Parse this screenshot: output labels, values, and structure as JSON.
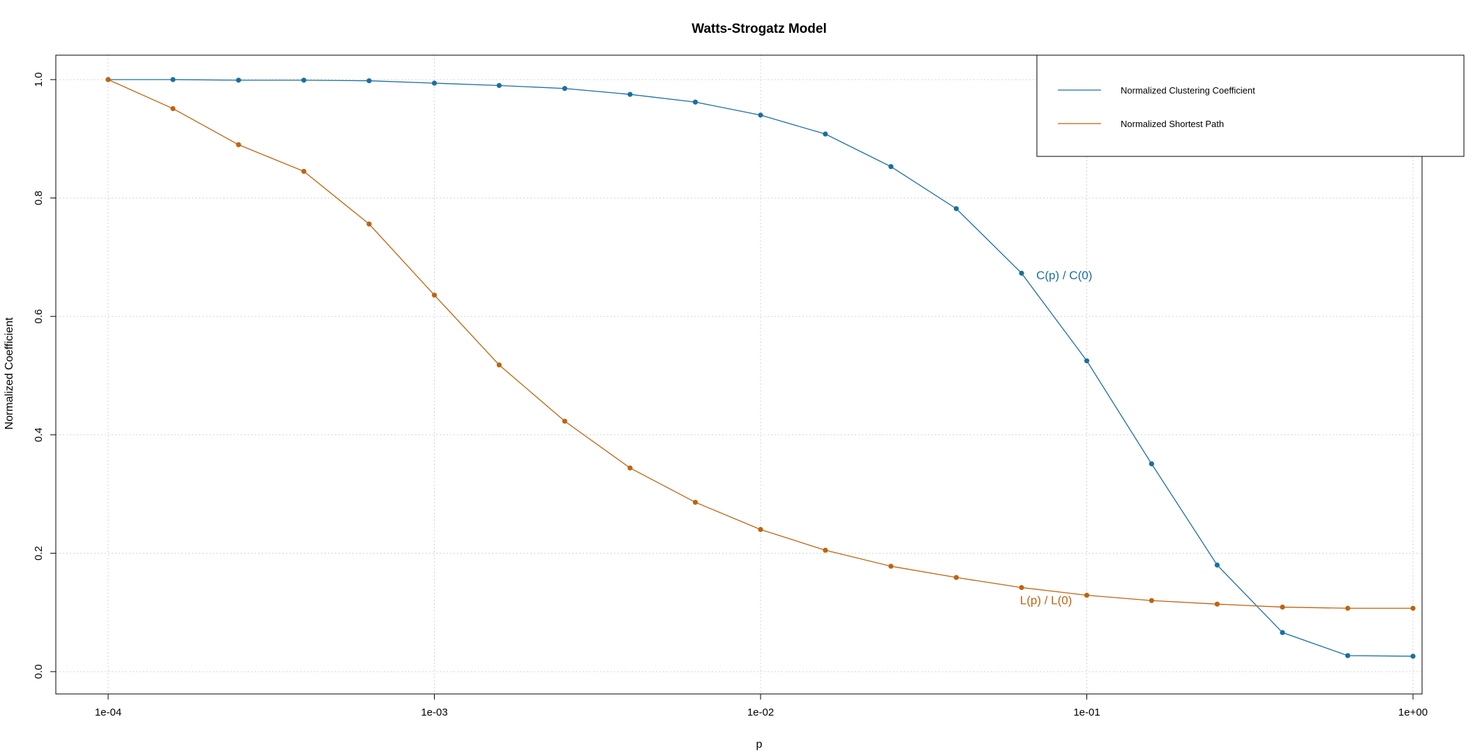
{
  "chart_data": {
    "type": "line",
    "title": "Watts-Strogatz Model",
    "xlabel": "p",
    "ylabel": "Normalized Coefficient",
    "x_scale": "log",
    "xlim": [
      0.0001,
      1
    ],
    "ylim": [
      0,
      1
    ],
    "x_ticks": [
      0.0001,
      0.001,
      0.01,
      0.1,
      1
    ],
    "x_tick_labels": [
      "1e-04",
      "1e-03",
      "1e-02",
      "1e-01",
      "1e+00"
    ],
    "y_ticks": [
      0,
      0.2,
      0.4,
      0.6,
      0.8,
      1.0
    ],
    "y_tick_labels": [
      "0.0",
      "0.2",
      "0.4",
      "0.6",
      "0.8",
      "1.0"
    ],
    "grid": true,
    "legend_position": "top-right",
    "x": [
      0.0001,
      0.000158,
      0.000251,
      0.000398,
      0.000631,
      0.001,
      0.00158,
      0.00251,
      0.00398,
      0.00631,
      0.01,
      0.0158,
      0.0251,
      0.0398,
      0.0631,
      0.1,
      0.158,
      0.251,
      0.398,
      0.631,
      1
    ],
    "series": [
      {
        "name": "Normalized Clustering Coefficient",
        "color": "#1a6fa0",
        "values": [
          1.0,
          1.0,
          0.999,
          0.999,
          0.998,
          0.994,
          0.99,
          0.985,
          0.975,
          0.962,
          0.94,
          0.908,
          0.853,
          0.782,
          0.673,
          0.525,
          0.351,
          0.18,
          0.066,
          0.027,
          0.026
        ]
      },
      {
        "name": "Normalized Shortest Path",
        "color": "#c0630f",
        "values": [
          1.0,
          0.951,
          0.89,
          0.845,
          0.756,
          0.636,
          0.518,
          0.423,
          0.344,
          0.286,
          0.24,
          0.205,
          0.178,
          0.159,
          0.142,
          0.129,
          0.12,
          0.114,
          0.109,
          0.107,
          0.107
        ]
      }
    ],
    "annotations": [
      {
        "text": "C(p) / C(0)",
        "x": 0.07,
        "y": 0.67,
        "color": "#1a6fa0",
        "series": 0
      },
      {
        "text": "L(p) / L(0)",
        "x": 0.075,
        "y": 0.121,
        "color": "#c0630f",
        "series": 1
      }
    ]
  }
}
